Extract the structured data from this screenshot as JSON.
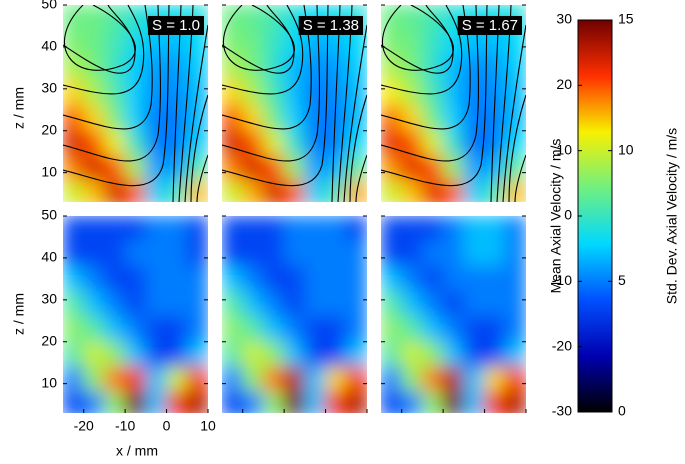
{
  "chart_data": {
    "type": "heatmap",
    "xlabel": "x / mm",
    "ylabel": "z / mm",
    "xlim": [
      -25,
      10
    ],
    "ylim": [
      3,
      50
    ],
    "xticks": [
      -20,
      -10,
      0,
      10
    ],
    "yticks": [
      10,
      20,
      30,
      40,
      50
    ],
    "x": [
      -22.5,
      -17.5,
      -12.5,
      -7.5,
      -2.5,
      2.5,
      7.5
    ],
    "y": [
      47,
      41,
      35,
      29,
      23,
      17,
      11,
      5
    ],
    "colormap": [
      "#000000",
      "#0000b0",
      "#0050ff",
      "#00d8ff",
      "#70f080",
      "#f8f000",
      "#ff3000",
      "#700000"
    ],
    "rows": [
      {
        "colorbar": {
          "label": "Mean Axial Velocity / m/s",
          "lim": [
            -30,
            30
          ],
          "ticks": [
            -30,
            -20,
            -10,
            0,
            10,
            20,
            30
          ]
        },
        "panels": [
          {
            "title": "S = 1.0",
            "values": [
              [
                4,
                4,
                2,
                -1,
                -3,
                -3,
                -2
              ],
              [
                5,
                4,
                1,
                -3,
                -6,
                -6,
                -4
              ],
              [
                8,
                5,
                0,
                -5,
                -8,
                -8,
                -5
              ],
              [
                14,
                8,
                2,
                -5,
                -9,
                -9,
                -6
              ],
              [
                20,
                14,
                5,
                -5,
                -10,
                -10,
                -6
              ],
              [
                24,
                20,
                12,
                0,
                -10,
                -10,
                -5
              ],
              [
                18,
                24,
                20,
                8,
                -8,
                -8,
                2
              ],
              [
                10,
                15,
                24,
                20,
                -5,
                0,
                15
              ]
            ]
          },
          {
            "title": "S = 1.38",
            "values": [
              [
                4,
                3,
                1,
                -2,
                -4,
                -3,
                -2
              ],
              [
                5,
                4,
                0,
                -4,
                -7,
                -6,
                -4
              ],
              [
                8,
                5,
                -1,
                -6,
                -9,
                -8,
                -5
              ],
              [
                14,
                8,
                1,
                -6,
                -10,
                -9,
                -6
              ],
              [
                20,
                14,
                4,
                -5,
                -10,
                -10,
                -6
              ],
              [
                24,
                20,
                11,
                -1,
                -10,
                -10,
                -4
              ],
              [
                18,
                24,
                20,
                7,
                -8,
                -7,
                3
              ],
              [
                10,
                16,
                24,
                20,
                -5,
                1,
                16
              ]
            ]
          },
          {
            "title": "S = 1.67",
            "values": [
              [
                4,
                3,
                1,
                -2,
                -3,
                -3,
                -2
              ],
              [
                5,
                4,
                0,
                -4,
                -6,
                -6,
                -4
              ],
              [
                8,
                5,
                -1,
                -6,
                -9,
                -8,
                -5
              ],
              [
                13,
                8,
                1,
                -6,
                -10,
                -9,
                -6
              ],
              [
                19,
                14,
                4,
                -5,
                -10,
                -10,
                -6
              ],
              [
                23,
                20,
                11,
                -1,
                -11,
                -10,
                -4
              ],
              [
                17,
                23,
                20,
                7,
                -8,
                -7,
                3
              ],
              [
                10,
                15,
                23,
                20,
                -5,
                1,
                15
              ]
            ]
          }
        ]
      },
      {
        "colorbar": {
          "label": "Std. Dev. Axial Velocity / m/s",
          "lim": [
            0,
            15
          ],
          "ticks": [
            0,
            5,
            10,
            15
          ]
        },
        "panels": [
          {
            "values": [
              [
                4,
                4,
                4,
                4,
                5,
                5,
                4
              ],
              [
                4,
                4,
                4,
                5,
                5,
                5,
                4
              ],
              [
                6,
                5,
                4,
                4,
                5,
                5,
                5
              ],
              [
                8,
                6,
                5,
                4,
                5,
                5,
                5
              ],
              [
                9,
                8,
                6,
                5,
                4,
                4,
                5
              ],
              [
                8,
                10,
                9,
                6,
                4,
                4,
                6
              ],
              [
                5,
                9,
                12,
                13,
                6,
                10,
                13
              ],
              [
                4,
                5,
                9,
                15,
                6,
                13,
                14
              ]
            ]
          },
          {
            "values": [
              [
                4,
                4,
                4,
                5,
                5,
                5,
                4
              ],
              [
                4,
                4,
                4,
                5,
                5,
                5,
                5
              ],
              [
                6,
                5,
                4,
                4,
                5,
                5,
                5
              ],
              [
                8,
                6,
                5,
                4,
                5,
                5,
                5
              ],
              [
                9,
                8,
                6,
                5,
                4,
                4,
                5
              ],
              [
                8,
                10,
                9,
                6,
                4,
                4,
                6
              ],
              [
                5,
                9,
                12,
                14,
                6,
                11,
                13
              ],
              [
                4,
                5,
                9,
                15,
                6,
                13,
                14
              ]
            ]
          },
          {
            "values": [
              [
                4,
                4,
                4,
                5,
                6,
                6,
                5
              ],
              [
                4,
                4,
                5,
                5,
                6,
                6,
                5
              ],
              [
                6,
                5,
                4,
                5,
                5,
                5,
                5
              ],
              [
                8,
                6,
                5,
                4,
                5,
                5,
                5
              ],
              [
                9,
                8,
                6,
                5,
                4,
                4,
                5
              ],
              [
                8,
                10,
                9,
                6,
                4,
                4,
                6
              ],
              [
                5,
                9,
                12,
                14,
                6,
                11,
                13
              ],
              [
                4,
                5,
                9,
                15,
                6,
                13,
                14
              ]
            ]
          }
        ]
      }
    ]
  }
}
